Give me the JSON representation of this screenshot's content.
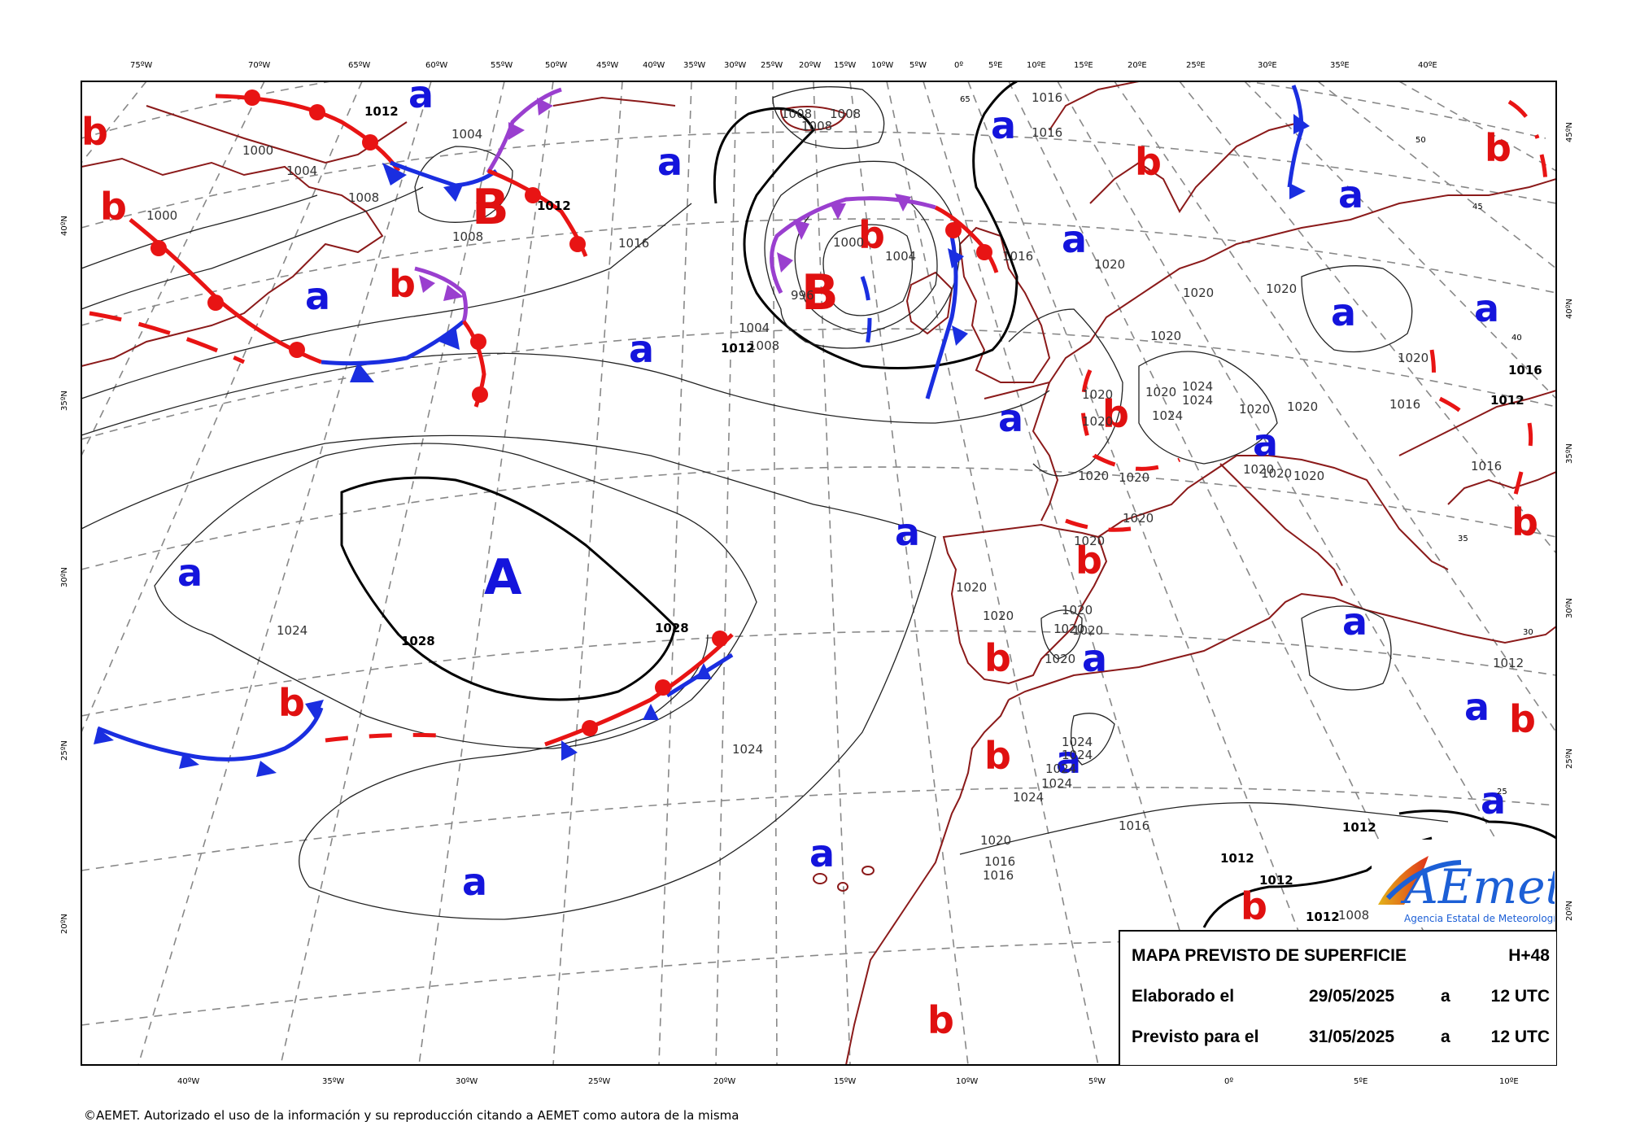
{
  "map": {
    "top_lon_labels": [
      "75ºW",
      "70ºW",
      "65ºW",
      "60ºW",
      "55ºW",
      "50ºW",
      "45ºW",
      "40ºW",
      "35ºW",
      "30ºW",
      "25ºW",
      "20ºW",
      "15ºW",
      "10ºW",
      "5ºW",
      "0º",
      "5ºE",
      "10ºE",
      "15ºE",
      "20ºE",
      "25ºE",
      "30ºE",
      "35ºE",
      "40ºE"
    ],
    "bottom_lon_labels": [
      "40ºW",
      "35ºW",
      "30ºW",
      "25ºW",
      "20ºW",
      "15ºW",
      "10ºW",
      "5ºW",
      "0º",
      "5ºE",
      "10ºE"
    ],
    "left_lat_labels": [
      "40ºN",
      "35ºN",
      "30ºN",
      "25ºN",
      "20ºN"
    ],
    "right_lat_labels": [
      "45ºN",
      "40ºN",
      "35ºN",
      "30ºN",
      "25ºN",
      "20ºN"
    ],
    "inner_lat_labels": [
      "65",
      "50",
      "45",
      "40",
      "35",
      "30",
      "25"
    ],
    "isobar_labels": [
      "1012",
      "1000",
      "1004",
      "1008",
      "1000",
      "1008",
      "1016",
      "1012",
      "1004",
      "1008",
      "1008",
      "1008",
      "1000",
      "1004",
      "996",
      "1004",
      "1008",
      "1012",
      "1016",
      "1016",
      "1016",
      "1020",
      "1020",
      "1020",
      "1020",
      "1020",
      "1024",
      "1024",
      "1024",
      "1020",
      "1020",
      "1020",
      "1020",
      "1020",
      "1020",
      "1016",
      "1016",
      "1020",
      "1020",
      "1020",
      "1020",
      "1020",
      "1020",
      "1020",
      "1020",
      "1020",
      "1020",
      "1020",
      "1020",
      "1024",
      "1024",
      "1024",
      "1024",
      "1024",
      "1020",
      "1016",
      "1016",
      "1016",
      "1012",
      "1012",
      "1012",
      "1012",
      "1008",
      "1028",
      "1028",
      "1024",
      "1024",
      "1016",
      "1012",
      "1012",
      "1016"
    ],
    "pressure_centers": [
      {
        "kind": "B",
        "label": "B"
      },
      {
        "kind": "B",
        "label": "B"
      },
      {
        "kind": "A",
        "label": "A"
      }
    ],
    "labels_a": [
      "a",
      "a",
      "a",
      "a",
      "a",
      "a",
      "a",
      "a",
      "a",
      "a",
      "a",
      "a",
      "a",
      "a",
      "a",
      "a",
      "a",
      "a",
      "a",
      "a"
    ],
    "labels_b": [
      "b",
      "b",
      "b",
      "b",
      "b",
      "b",
      "b",
      "b",
      "b",
      "b",
      "b",
      "b",
      "b",
      "b",
      "b",
      "b"
    ],
    "colors": {
      "warm": "#e81414",
      "cold": "#1a2ee0",
      "occluded": "#9a3fcf",
      "coast": "#8b1a1a"
    }
  },
  "info": {
    "title": "MAPA PREVISTO DE SUPERFICIE",
    "forecast_hour": "H+48",
    "elaborated_label": "Elaborado el",
    "elaborated_date": "29/05/2025",
    "elaborated_sep": "a",
    "elaborated_time": "12 UTC",
    "valid_label": "Previsto para el",
    "valid_date": "31/05/2025",
    "valid_sep": "a",
    "valid_time": "12 UTC"
  },
  "logo": {
    "name": "AEmet",
    "subtitle": "Agencia Estatal de Meteorología"
  },
  "copyright": "©AEMET. Autorizado el uso de la información y su reproducción citando a AEMET como autora de la misma"
}
